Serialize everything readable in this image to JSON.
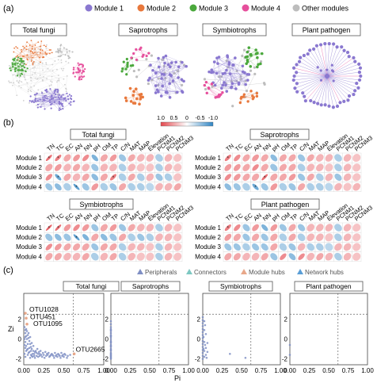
{
  "panel_a": {
    "label": "(a)",
    "legend": [
      {
        "name": "Module 1",
        "color": "#8a78d0"
      },
      {
        "name": "Module 2",
        "color": "#e8783c"
      },
      {
        "name": "Module 3",
        "color": "#4aa83c"
      },
      {
        "name": "Module 4",
        "color": "#e64f9c"
      },
      {
        "name": "Other modules",
        "color": "#bdbdbd"
      }
    ],
    "networks": [
      {
        "title": "Total fungi"
      },
      {
        "title": "Saprotrophs"
      },
      {
        "title": "Symbiotrophs"
      },
      {
        "title": "Plant pathogen"
      }
    ]
  },
  "panel_b": {
    "label": "(b)",
    "colorbar": {
      "ticks": [
        "1.0",
        "0.5",
        "0",
        "-0.5",
        "-1.0"
      ],
      "pos_color": "#e4474d",
      "neg_color": "#2f85c4"
    },
    "variables": [
      "TN",
      "TC",
      "EC",
      "AN",
      "NN",
      "pH",
      "OM",
      "TP",
      "C/N",
      "MAT",
      "MAP",
      "Elevation",
      "PCNM1",
      "PCNM2",
      "PCNM3"
    ],
    "modules": [
      "Module 1",
      "Module 2",
      "Module 3",
      "Module 4"
    ],
    "matrices": [
      {
        "title": "Total fungi",
        "values": [
          [
            0.7,
            0.6,
            0.3,
            0.4,
            0.5,
            -0.5,
            0.3,
            0.4,
            -0.3,
            0.3,
            0.2,
            0.2,
            -0.2,
            0.2,
            0.1
          ],
          [
            0.3,
            0.4,
            0.2,
            0.3,
            0.2,
            -0.3,
            0.2,
            0.2,
            -0.2,
            0.2,
            0.1,
            0.1,
            -0.2,
            0.2,
            0.1
          ],
          [
            0.5,
            -0.6,
            0.3,
            0.2,
            0.3,
            -0.4,
            0.3,
            0.6,
            -0.2,
            0.3,
            -0.2,
            0.2,
            -0.3,
            -0.2,
            0.1
          ],
          [
            -0.3,
            -0.4,
            -0.2,
            -0.7,
            -0.3,
            0.4,
            -0.2,
            -0.3,
            0.3,
            -0.2,
            -0.2,
            -0.1,
            0.2,
            0.2,
            0.3
          ]
        ]
      },
      {
        "title": "Saprotrophs",
        "values": [
          [
            0.6,
            0.5,
            0.3,
            0.4,
            0.3,
            -0.4,
            0.3,
            0.3,
            -0.3,
            0.3,
            0.2,
            0.2,
            -0.2,
            0.2,
            0.1
          ],
          [
            0.4,
            0.4,
            0.3,
            0.5,
            0.3,
            -0.3,
            0.3,
            0.3,
            -0.2,
            0.2,
            0.2,
            0.1,
            -0.2,
            0.2,
            0.1
          ],
          [
            0.5,
            0.4,
            0.3,
            0.3,
            0.7,
            0.3,
            0.3,
            0.4,
            -0.3,
            0.3,
            -0.2,
            0.2,
            -0.3,
            0.2,
            0.1
          ],
          [
            -0.4,
            -0.3,
            -0.2,
            -0.6,
            -0.3,
            0.4,
            -0.2,
            -0.3,
            0.3,
            -0.2,
            -0.2,
            -0.1,
            0.2,
            0.1,
            0.2
          ]
        ]
      },
      {
        "title": "Symbiotrophs",
        "values": [
          [
            0.8,
            0.7,
            0.4,
            0.5,
            0.4,
            -0.3,
            0.3,
            0.4,
            -0.3,
            0.3,
            0.2,
            0.2,
            -0.2,
            0.2,
            0.1
          ],
          [
            -0.3,
            -0.4,
            -0.3,
            -0.7,
            -0.5,
            0.3,
            -0.4,
            -0.3,
            0.3,
            -0.2,
            -0.3,
            -0.2,
            0.2,
            0.2,
            0.1
          ],
          [
            0.5,
            0.4,
            0.3,
            0.3,
            0.3,
            -0.3,
            0.3,
            0.3,
            -0.2,
            0.2,
            0.2,
            0.1,
            -0.2,
            0.2,
            0.1
          ],
          [
            0.3,
            0.3,
            0.2,
            0.2,
            0.3,
            -0.2,
            0.2,
            0.3,
            -0.2,
            0.2,
            0.1,
            0.1,
            -0.2,
            0.2,
            0.1
          ]
        ]
      },
      {
        "title": "Plant pathogen",
        "values": [
          [
            0.6,
            0.5,
            -0.3,
            0.4,
            -0.5,
            0.4,
            -0.3,
            0.3,
            -0.3,
            0.2,
            0.2,
            0.2,
            -0.2,
            0.2,
            0.1
          ],
          [
            0.4,
            0.3,
            -0.3,
            0.3,
            -0.3,
            0.3,
            -0.2,
            0.3,
            -0.2,
            0.2,
            0.2,
            0.1,
            -0.2,
            0.2,
            0.1
          ],
          [
            -0.3,
            -0.3,
            -0.2,
            -0.3,
            -0.3,
            0.3,
            -0.2,
            -0.3,
            0.2,
            -0.2,
            -0.2,
            -0.1,
            0.2,
            0.2,
            0.1
          ],
          [
            0.3,
            0.3,
            0.2,
            0.2,
            0.3,
            -0.3,
            0.5,
            -0.4,
            0.5,
            0.2,
            0.3,
            0.2,
            -0.2,
            0.2,
            0.1
          ]
        ]
      }
    ]
  },
  "panel_c": {
    "label": "(c)",
    "legend": [
      {
        "name": "Peripherals",
        "color": "#7f8fc4"
      },
      {
        "name": "Connectors",
        "color": "#7ec8c2"
      },
      {
        "name": "Module hubs",
        "color": "#e8a88a"
      },
      {
        "name": "Network hubs",
        "color": "#5a9ed6"
      }
    ],
    "xlabel": "Pi",
    "ylabel": "Zi",
    "x_ticks": [
      "0.00",
      "0.25",
      "0.50",
      "0.75",
      "1.00"
    ],
    "y_ticks": [
      "2",
      "0",
      "-2"
    ],
    "xlim": [
      0,
      1.0
    ],
    "ylim": [
      -2.6,
      4.6
    ],
    "zi_threshold": 2.5,
    "pi_threshold": 0.62
  },
  "chart_data": [
    {
      "type": "scatter",
      "title": "Total fungi",
      "xlabel": "Pi",
      "ylabel": "Zi",
      "xlim": [
        0,
        1.0
      ],
      "ylim": [
        -2.6,
        4.6
      ],
      "annotations": [
        {
          "text": "OTU1028",
          "x": 0.02,
          "y": 2.6
        },
        {
          "text": "OTU451",
          "x": 0.03,
          "y": 2.1
        },
        {
          "text": "OTU1095",
          "x": 0.04,
          "y": 1.5
        },
        {
          "text": "OTU2665",
          "x": 0.63,
          "y": -1.5
        }
      ],
      "points": [
        [
          0.02,
          2.6
        ],
        [
          0.03,
          2.1
        ],
        [
          0.04,
          1.5
        ],
        [
          0.63,
          -1.5
        ],
        [
          0.01,
          1.2
        ],
        [
          0.02,
          0.9
        ],
        [
          0.02,
          0.6
        ],
        [
          0.03,
          0.3
        ],
        [
          0.01,
          0.0
        ],
        [
          0.02,
          -0.3
        ],
        [
          0.01,
          -0.6
        ],
        [
          0.02,
          -0.9
        ],
        [
          0.03,
          -1.2
        ],
        [
          0.01,
          -1.5
        ],
        [
          0.02,
          -1.8
        ],
        [
          0.04,
          0.8
        ],
        [
          0.05,
          0.4
        ],
        [
          0.06,
          0.1
        ],
        [
          0.07,
          -0.2
        ],
        [
          0.08,
          -0.5
        ],
        [
          0.09,
          -0.8
        ],
        [
          0.1,
          -1.0
        ],
        [
          0.12,
          -1.2
        ],
        [
          0.14,
          -1.3
        ],
        [
          0.16,
          -1.4
        ],
        [
          0.18,
          -1.5
        ],
        [
          0.2,
          -1.5
        ],
        [
          0.22,
          -1.6
        ],
        [
          0.25,
          -1.6
        ],
        [
          0.28,
          -1.7
        ],
        [
          0.3,
          -1.6
        ],
        [
          0.33,
          -1.7
        ],
        [
          0.36,
          -1.6
        ],
        [
          0.4,
          -1.7
        ],
        [
          0.44,
          -1.6
        ],
        [
          0.48,
          -1.7
        ],
        [
          0.52,
          -1.6
        ],
        [
          0.55,
          -1.7
        ],
        [
          0.58,
          -1.6
        ],
        [
          0.06,
          0.6
        ],
        [
          0.08,
          0.2
        ],
        [
          0.1,
          -0.4
        ],
        [
          0.12,
          -0.7
        ],
        [
          0.05,
          -1.0
        ],
        [
          0.07,
          -1.3
        ],
        [
          0.09,
          -1.6
        ],
        [
          0.11,
          -1.8
        ],
        [
          0.13,
          -1.7
        ],
        [
          0.15,
          -1.2
        ],
        [
          0.17,
          -1.0
        ],
        [
          0.19,
          -1.3
        ],
        [
          0.21,
          -1.2
        ],
        [
          0.24,
          -1.4
        ],
        [
          0.27,
          -1.3
        ],
        [
          0.31,
          -1.4
        ],
        [
          0.35,
          -1.5
        ],
        [
          0.39,
          -1.4
        ],
        [
          0.43,
          -1.5
        ],
        [
          0.47,
          -1.4
        ],
        [
          0.51,
          -1.5
        ],
        [
          0.03,
          1.0
        ],
        [
          0.04,
          0.0
        ],
        [
          0.05,
          -0.5
        ],
        [
          0.06,
          -1.4
        ],
        [
          0.08,
          -1.9
        ],
        [
          0.1,
          -1.7
        ],
        [
          0.14,
          -1.9
        ],
        [
          0.18,
          -1.8
        ],
        [
          0.23,
          -1.8
        ],
        [
          0.26,
          -1.9
        ],
        [
          0.32,
          -1.8
        ],
        [
          0.38,
          -1.9
        ],
        [
          0.42,
          -1.8
        ],
        [
          0.46,
          -1.9
        ],
        [
          0.5,
          -1.8
        ],
        [
          0.54,
          -1.9
        ],
        [
          0.02,
          0.2
        ],
        [
          0.03,
          -0.7
        ],
        [
          0.04,
          -1.1
        ],
        [
          0.05,
          -1.6
        ],
        [
          0.07,
          -0.9
        ],
        [
          0.09,
          -1.2
        ],
        [
          0.11,
          -1.5
        ],
        [
          0.13,
          -1.5
        ],
        [
          0.16,
          -1.7
        ],
        [
          0.2,
          -1.7
        ],
        [
          0.29,
          -1.5
        ],
        [
          0.34,
          -1.6
        ],
        [
          0.37,
          -1.7
        ],
        [
          0.41,
          -1.6
        ],
        [
          0.45,
          -1.7
        ],
        [
          0.49,
          -1.6
        ]
      ]
    },
    {
      "type": "scatter",
      "title": "Saprotrophs",
      "xlabel": "",
      "ylabel": "",
      "xlim": [
        0,
        1.0
      ],
      "ylim": [
        -2.6,
        4.6
      ],
      "points": [
        [
          0.0,
          1.8
        ],
        [
          0.0,
          1.5
        ],
        [
          0.0,
          1.2
        ],
        [
          0.0,
          1.0
        ],
        [
          0.0,
          0.8
        ],
        [
          0.0,
          0.6
        ],
        [
          0.0,
          0.4
        ],
        [
          0.0,
          0.2
        ],
        [
          0.0,
          0.0
        ],
        [
          0.0,
          -0.2
        ],
        [
          0.0,
          -0.4
        ],
        [
          0.0,
          -0.6
        ],
        [
          0.0,
          -0.8
        ],
        [
          0.0,
          -1.0
        ],
        [
          0.0,
          -1.2
        ],
        [
          0.0,
          -1.4
        ],
        [
          0.0,
          -1.6
        ],
        [
          0.0,
          -1.8
        ],
        [
          0.0,
          -1.9
        ],
        [
          0.0,
          -2.0
        ],
        [
          0.0,
          -1.7
        ],
        [
          0.0,
          -1.5
        ],
        [
          0.0,
          -1.1
        ],
        [
          0.0,
          -0.7
        ],
        [
          0.0,
          -0.3
        ],
        [
          0.0,
          0.3
        ],
        [
          0.0,
          0.9
        ]
      ]
    },
    {
      "type": "scatter",
      "title": "Symbiotrophs",
      "xlabel": "",
      "ylabel": "",
      "xlim": [
        0,
        1.0
      ],
      "ylim": [
        -2.6,
        4.6
      ],
      "points": [
        [
          0.0,
          2.2
        ],
        [
          0.0,
          1.9
        ],
        [
          0.0,
          1.6
        ],
        [
          0.0,
          1.3
        ],
        [
          0.0,
          1.0
        ],
        [
          0.0,
          0.7
        ],
        [
          0.0,
          0.4
        ],
        [
          0.0,
          0.1
        ],
        [
          0.0,
          -0.2
        ],
        [
          0.0,
          -0.5
        ],
        [
          0.0,
          -0.8
        ],
        [
          0.0,
          -1.1
        ],
        [
          0.0,
          -1.4
        ],
        [
          0.0,
          -1.7
        ],
        [
          0.0,
          -2.0
        ],
        [
          0.02,
          1.8
        ],
        [
          0.02,
          0.9
        ],
        [
          0.02,
          -0.3
        ],
        [
          0.02,
          -1.2
        ],
        [
          0.02,
          -1.8
        ],
        [
          0.04,
          0.5
        ],
        [
          0.04,
          -0.9
        ],
        [
          0.04,
          -1.6
        ],
        [
          0.06,
          -0.4
        ],
        [
          0.06,
          -1.3
        ],
        [
          0.03,
          1.4
        ],
        [
          0.03,
          -0.6
        ],
        [
          0.05,
          -1.9
        ],
        [
          0.01,
          0.2
        ],
        [
          0.01,
          -1.0
        ],
        [
          0.35,
          -1.5
        ],
        [
          0.55,
          -1.9
        ]
      ]
    },
    {
      "type": "scatter",
      "title": "Plant pathogen",
      "xlabel": "",
      "ylabel": "",
      "xlim": [
        0,
        1.0
      ],
      "ylim": [
        -2.6,
        4.6
      ],
      "points": [
        [
          0.0,
          -0.6
        ],
        [
          0.0,
          -1.6
        ]
      ]
    }
  ]
}
